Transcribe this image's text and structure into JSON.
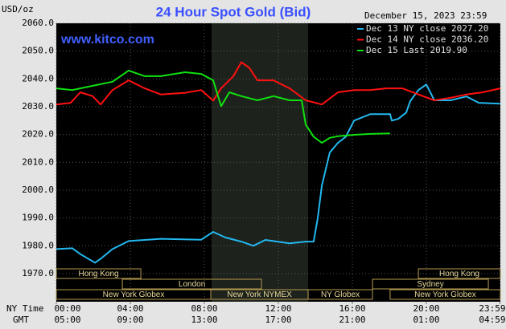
{
  "chart_data": {
    "type": "line",
    "title": "24 Hour Spot Gold (Bid)",
    "watermark": "www.kitco.com",
    "timestamp": "December 15, 2023 23:59",
    "y_label": "USD/oz",
    "x_label": "NY Time",
    "x2_label": "GMT",
    "xlim": [
      0,
      24
    ],
    "xticks": [
      {
        "value": 0,
        "label": "00:00"
      },
      {
        "value": 4,
        "label": "04:00"
      },
      {
        "value": 8,
        "label": "08:00"
      },
      {
        "value": 12,
        "label": "12:00"
      },
      {
        "value": 16,
        "label": "16:00"
      },
      {
        "value": 20,
        "label": "20:00"
      },
      {
        "value": 23.98,
        "label": "23:59"
      }
    ],
    "x2ticks": [
      {
        "value": 0,
        "label": "05:00"
      },
      {
        "value": 4,
        "label": "09:00"
      },
      {
        "value": 8,
        "label": "13:00"
      },
      {
        "value": 12,
        "label": "17:00"
      },
      {
        "value": 16,
        "label": "21:00"
      },
      {
        "value": 20,
        "label": "01:00"
      },
      {
        "value": 23.98,
        "label": "04:59"
      }
    ],
    "ylim": [
      1960,
      2060
    ],
    "yticks": [
      {
        "value": 1970,
        "label": "1970.0"
      },
      {
        "value": 1980,
        "label": "1980.0"
      },
      {
        "value": 1990,
        "label": "1990.0"
      },
      {
        "value": 2000,
        "label": "2000.0"
      },
      {
        "value": 2010,
        "label": "2010.0"
      },
      {
        "value": 2020,
        "label": "2020.0"
      },
      {
        "value": 2030,
        "label": "2030.0"
      },
      {
        "value": 2040,
        "label": "2040.0"
      },
      {
        "value": 2050,
        "label": "2050.0"
      },
      {
        "value": 2060,
        "label": "2060.0"
      }
    ],
    "grid": true,
    "sessions": [
      "Hong Kong",
      "London",
      "New York Globex",
      "New York NYMEX",
      "NY Globex",
      "Sydney",
      "Hong Kong",
      "New York Globex"
    ],
    "series": [
      {
        "name": "Dec 13 NY close 2027.20",
        "color": "#22b8f0",
        "x": [
          0,
          0.87,
          1.3,
          2.09,
          2.39,
          3.04,
          3.91,
          5.65,
          7.83,
          8.48,
          9.13,
          10,
          10.65,
          11.3,
          12.61,
          13.48,
          13.91,
          14.13,
          14.35,
          14.78,
          15.22,
          15.65,
          16.09,
          16.96,
          18.04,
          18.13,
          18.48,
          18.91,
          19.13,
          19.57,
          20,
          20.43,
          21.3,
          22.17,
          22.83,
          24
        ],
        "values": [
          1978.8,
          1979.1,
          1977,
          1973.9,
          1975.3,
          1978.8,
          1981.7,
          1982.5,
          1982.2,
          1985,
          1983,
          1981.5,
          1980,
          1982.1,
          1980.9,
          1981.5,
          1981.5,
          1990,
          2001.6,
          2013.5,
          2017,
          2019.2,
          2025,
          2027.3,
          2027.3,
          2025,
          2025.6,
          2027.9,
          2032,
          2036,
          2038,
          2032.3,
          2032.3,
          2033.7,
          2031.4,
          2031.1
        ]
      },
      {
        "name": "Dec 14 NY close 2036.20",
        "color": "#ff1010",
        "x": [
          0,
          0.78,
          1.3,
          1.96,
          2.39,
          3.04,
          3.91,
          4.78,
          5.65,
          6.96,
          7.83,
          8.48,
          8.91,
          9.57,
          10,
          10.43,
          10.87,
          11.74,
          12.61,
          13.48,
          14.35,
          15.22,
          16.09,
          16.96,
          17.83,
          18.7,
          19.57,
          20.43,
          21.3,
          22.17,
          23.04,
          24
        ],
        "values": [
          2030.8,
          2031.4,
          2035.2,
          2033.8,
          2030.8,
          2036,
          2039.5,
          2036.6,
          2034.4,
          2035,
          2036,
          2032.2,
          2036.6,
          2041,
          2046,
          2044,
          2039.5,
          2039.5,
          2036.6,
          2032.3,
          2030.8,
          2035.2,
          2036,
          2036,
          2036.6,
          2036.6,
          2034.4,
          2032.3,
          2033.2,
          2034.4,
          2035.2,
          2036.6
        ]
      },
      {
        "name": "Dec 15 Last 2019.90",
        "color": "#10e010",
        "x": [
          0,
          0.87,
          1.74,
          3.04,
          3.91,
          4.78,
          5.65,
          6.96,
          7.83,
          8.48,
          8.91,
          9.35,
          10,
          10.87,
          11.74,
          12.61,
          13.26,
          13.48,
          13.91,
          14.35,
          14.78,
          15.22,
          16.09,
          16.96,
          18.04
        ],
        "values": [
          2036.6,
          2036,
          2037.2,
          2039,
          2043,
          2041,
          2041,
          2042.4,
          2041.8,
          2039.5,
          2030.2,
          2035.2,
          2033.8,
          2032.3,
          2033.8,
          2032.3,
          2032.3,
          2023.6,
          2019.2,
          2017,
          2018.8,
          2019.4,
          2019.9,
          2020.2,
          2020.4
        ]
      }
    ]
  }
}
